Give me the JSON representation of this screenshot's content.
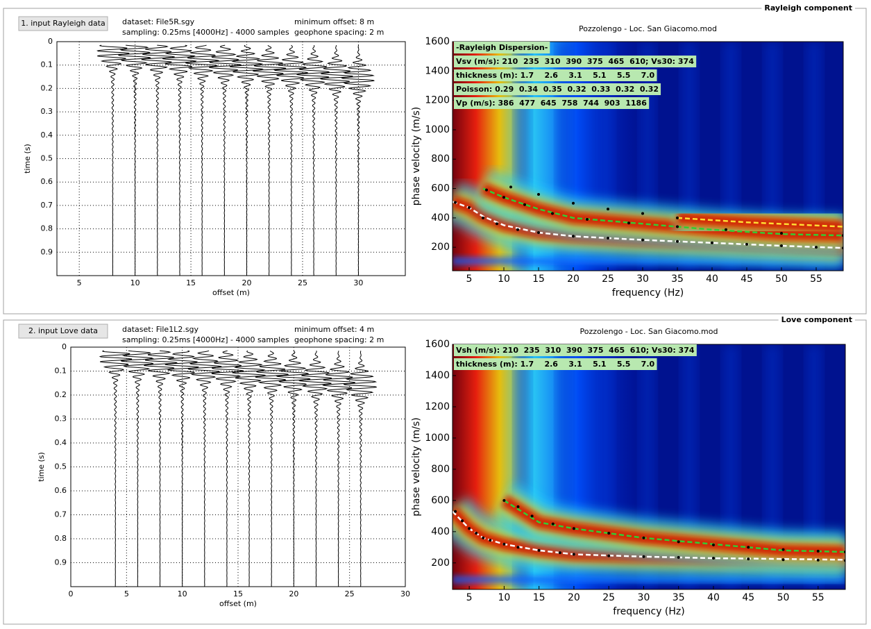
{
  "panels": [
    {
      "title": "Rayleigh component",
      "button": "1. input Rayleigh data",
      "dataset": "dataset: File5R.sgy",
      "sampling": "sampling: 0.25ms [4000Hz] - 4000 samples",
      "min_offset": "minimum offset: 8 m",
      "spacing": "geophone spacing: 2 m",
      "seismogram": {
        "xlabel": "offset (m)",
        "ylabel": "time (s)",
        "xlim": [
          3,
          34.2
        ],
        "ylim": [
          0,
          1
        ],
        "xticks": [
          5,
          10,
          15,
          20,
          25,
          30
        ],
        "yticks": [
          0,
          0.1,
          0.2,
          0.3,
          0.4,
          0.5,
          0.6,
          0.7,
          0.8,
          0.9
        ],
        "grid": true,
        "trace_offsets": [
          8,
          10,
          12,
          14,
          16,
          18,
          20,
          22,
          24,
          26,
          28,
          30
        ]
      },
      "dispersion": {
        "title": "Pozzolengo - Loc. San Giacomo.mod",
        "xlabel": "frequency (Hz)",
        "ylabel": "phase velocity (m/s)",
        "xlim": [
          2.6,
          58.9
        ],
        "ylim": [
          40,
          1600
        ],
        "xticks": [
          5,
          10,
          15,
          20,
          25,
          30,
          35,
          40,
          45,
          50,
          55
        ],
        "yticks": [
          200,
          400,
          600,
          800,
          1000,
          1200,
          1400,
          1600
        ],
        "info": [
          "-Rayleigh Dispersion-",
          "Vsv (m/s): 210  235  310  390  375  465  610; Vs30: 374",
          "thickness (m): 1.7    2.6    3.1    5.1    5.5    7.0",
          "Poisson: 0.29  0.34  0.35  0.32  0.33  0.32  0.32",
          "Vp (m/s): 386  477  645  758  744  903  1186"
        ],
        "curves": [
          {
            "color": "#ffffff",
            "x": [
              2.6,
              5,
              7,
              10,
              15,
              20,
              30,
              40,
              50,
              58.9
            ],
            "y": [
              510,
              470,
              410,
              350,
              300,
              275,
              250,
              230,
              210,
              195
            ]
          },
          {
            "color": "#33cc33",
            "x": [
              7,
              10,
              15,
              20,
              30,
              40,
              50,
              58.9
            ],
            "y": [
              600,
              540,
              460,
              400,
              360,
              320,
              290,
              280
            ]
          },
          {
            "color": "#ffdd33",
            "x": [
              35,
              45,
              58.9
            ],
            "y": [
              400,
              370,
              340
            ]
          }
        ],
        "picks": {
          "x": [
            3,
            5,
            7,
            9,
            12,
            15,
            20,
            25,
            30,
            35,
            40,
            45,
            50,
            55,
            58.9,
            7.5,
            10,
            13,
            17,
            22,
            28,
            35,
            42,
            50,
            58.9,
            11,
            15,
            20,
            25,
            30,
            35
          ],
          "y": [
            505,
            470,
            400,
            360,
            320,
            300,
            275,
            262,
            250,
            240,
            230,
            220,
            210,
            200,
            195,
            590,
            540,
            490,
            430,
            390,
            365,
            340,
            320,
            295,
            280,
            610,
            560,
            500,
            460,
            430,
            400
          ]
        }
      }
    },
    {
      "title": "Love component",
      "button": "2. input Love data",
      "dataset": "dataset: File1L2.sgy",
      "sampling": "sampling: 0.25ms [4000Hz] - 4000 samples",
      "min_offset": "minimum offset: 4 m",
      "spacing": "geophone spacing: 2 m",
      "seismogram": {
        "xlabel": "offset (m)",
        "ylabel": "time (s)",
        "xlim": [
          0,
          30
        ],
        "ylim": [
          0,
          1
        ],
        "xticks": [
          0,
          5,
          10,
          15,
          20,
          25,
          30
        ],
        "yticks": [
          0,
          0.1,
          0.2,
          0.3,
          0.4,
          0.5,
          0.6,
          0.7,
          0.8,
          0.9
        ],
        "grid": true,
        "trace_offsets": [
          4,
          6,
          8,
          10,
          12,
          14,
          16,
          18,
          20,
          22,
          24,
          26
        ]
      },
      "dispersion": {
        "title": "Pozzolengo - Loc. San Giacomo.mod",
        "xlabel": "frequency (Hz)",
        "ylabel": "phase velocity (m/s)",
        "xlim": [
          2.6,
          58.9
        ],
        "ylim": [
          30,
          1600
        ],
        "xticks": [
          5,
          10,
          15,
          20,
          25,
          30,
          35,
          40,
          45,
          50,
          55
        ],
        "yticks": [
          200,
          400,
          600,
          800,
          1000,
          1200,
          1400,
          1600
        ],
        "info": [
          "Vsh (m/s): 210  235  310  390  375  465  610; Vs30: 374",
          "thickness (m): 1.7    2.6    3.1    5.1    5.5    7.0"
        ],
        "curves": [
          {
            "color": "#ffffff",
            "x": [
              2.6,
              5,
              7,
              10,
              15,
              20,
              30,
              40,
              50,
              58.9
            ],
            "y": [
              530,
              420,
              360,
              320,
              280,
              255,
              240,
              230,
              225,
              220
            ]
          },
          {
            "color": "#33cc33",
            "x": [
              10,
              15,
              20,
              30,
              40,
              50,
              58.9
            ],
            "y": [
              600,
              460,
              420,
              360,
              320,
              280,
              270
            ]
          }
        ],
        "picks": {
          "x": [
            3,
            4,
            5,
            6,
            7,
            8,
            10,
            12,
            15,
            18,
            20,
            25,
            30,
            35,
            40,
            45,
            50,
            55,
            58.9,
            10,
            12,
            14,
            17,
            20,
            25,
            30,
            35,
            40,
            45,
            50,
            55,
            58.9
          ],
          "y": [
            530,
            470,
            420,
            390,
            360,
            345,
            320,
            300,
            280,
            265,
            255,
            245,
            240,
            235,
            230,
            225,
            220,
            218,
            215,
            600,
            560,
            500,
            450,
            420,
            390,
            360,
            335,
            315,
            300,
            285,
            275,
            270
          ]
        }
      }
    }
  ]
}
